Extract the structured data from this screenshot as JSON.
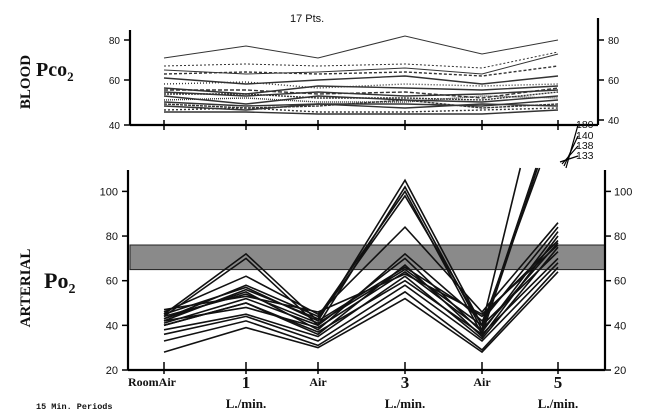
{
  "figure": {
    "subtitle_top": "17  Pts.",
    "period_note": "15 Min. Periods"
  },
  "chart_data": [
    {
      "type": "line",
      "title": "",
      "ylabel_rotated": "BLOOD",
      "ylabel_main": "Pco",
      "ylabel_sub": "2",
      "categories": [
        "Room Air",
        "1 L./min.",
        "Air",
        "3 L./min.",
        "Air",
        "5 L./min."
      ],
      "ylim": [
        40,
        85
      ],
      "yticks_left": [
        "80",
        "60",
        "40"
      ],
      "yticks_right": [
        "80",
        "60",
        "40"
      ],
      "grid": false,
      "series_color": "#333333",
      "series": [
        {
          "values": [
            71,
            77,
            71,
            82,
            73,
            80
          ]
        },
        {
          "values": [
            67,
            68,
            67,
            68,
            66,
            74
          ]
        },
        {
          "values": [
            65,
            63,
            64,
            66,
            63,
            73
          ]
        },
        {
          "values": [
            63,
            64,
            63,
            64,
            62,
            67
          ]
        },
        {
          "values": [
            61,
            58,
            60,
            62,
            58,
            62
          ]
        },
        {
          "values": [
            58,
            59,
            56,
            58,
            57,
            58
          ]
        },
        {
          "values": [
            56,
            53,
            57,
            56,
            55,
            57
          ]
        },
        {
          "values": [
            55,
            55,
            53,
            54,
            51,
            56
          ]
        },
        {
          "values": [
            54,
            52,
            54,
            52,
            53,
            55
          ]
        },
        {
          "values": [
            53,
            53,
            51,
            51,
            50,
            54
          ]
        },
        {
          "values": [
            52,
            48,
            52,
            50,
            49,
            52
          ]
        },
        {
          "values": [
            50,
            51,
            49,
            49,
            52,
            51
          ]
        },
        {
          "values": [
            49,
            47,
            48,
            48,
            47,
            50
          ]
        },
        {
          "values": [
            48,
            46,
            47,
            50,
            46,
            48
          ]
        },
        {
          "values": [
            47,
            45,
            48,
            46,
            48,
            47
          ]
        },
        {
          "values": [
            45,
            46,
            44,
            44,
            45,
            46
          ]
        },
        {
          "values": [
            44,
            44,
            43,
            43,
            43,
            45
          ]
        }
      ]
    },
    {
      "type": "line",
      "title": "",
      "ylabel_rotated": "ARTERIAL",
      "ylabel_main": "Po",
      "ylabel_sub": "2",
      "categories": [
        "Room Air",
        "1 L./min.",
        "Air",
        "3 L./min.",
        "Air",
        "5 L./min."
      ],
      "category_top_labels": [
        "RoomAir",
        "1",
        "Air",
        "3",
        "Air",
        "5"
      ],
      "category_bottom_labels": [
        "",
        "L./min.",
        "",
        "L./min.",
        "",
        "L./min."
      ],
      "ylim": [
        20,
        106
      ],
      "yticks_left": [
        "100",
        "80",
        "60",
        "40",
        "20"
      ],
      "yticks_right": [
        "100",
        "80",
        "60",
        "40",
        "20"
      ],
      "band": {
        "y0": 65,
        "y1": 76
      },
      "offscale_labels": [
        "180",
        "140",
        "138",
        "133"
      ],
      "grid": false,
      "series_color": "#111111",
      "series": [
        {
          "values": [
            45,
            72,
            42,
            105,
            40,
            180
          ]
        },
        {
          "values": [
            44,
            70,
            40,
            102,
            38,
            140
          ]
        },
        {
          "values": [
            43,
            58,
            44,
            100,
            36,
            138
          ]
        },
        {
          "values": [
            42,
            56,
            43,
            98,
            40,
            133
          ]
        },
        {
          "values": [
            46,
            62,
            45,
            84,
            46,
            86
          ]
        },
        {
          "values": [
            43,
            55,
            38,
            72,
            42,
            84
          ]
        },
        {
          "values": [
            41,
            52,
            40,
            70,
            37,
            82
          ]
        },
        {
          "values": [
            40,
            50,
            36,
            67,
            35,
            80
          ]
        },
        {
          "values": [
            45,
            57,
            42,
            66,
            44,
            78
          ]
        },
        {
          "values": [
            42,
            48,
            39,
            64,
            38,
            77
          ]
        },
        {
          "values": [
            38,
            45,
            35,
            62,
            34,
            75
          ]
        },
        {
          "values": [
            44,
            54,
            41,
            65,
            40,
            73
          ]
        },
        {
          "values": [
            40,
            50,
            37,
            60,
            36,
            70
          ]
        },
        {
          "values": [
            36,
            44,
            33,
            58,
            33,
            68
          ]
        },
        {
          "values": [
            33,
            42,
            31,
            55,
            29,
            66
          ]
        },
        {
          "values": [
            28,
            39,
            30,
            52,
            28,
            64
          ]
        },
        {
          "values": [
            47,
            53,
            46,
            63,
            45,
            76
          ]
        }
      ]
    }
  ]
}
